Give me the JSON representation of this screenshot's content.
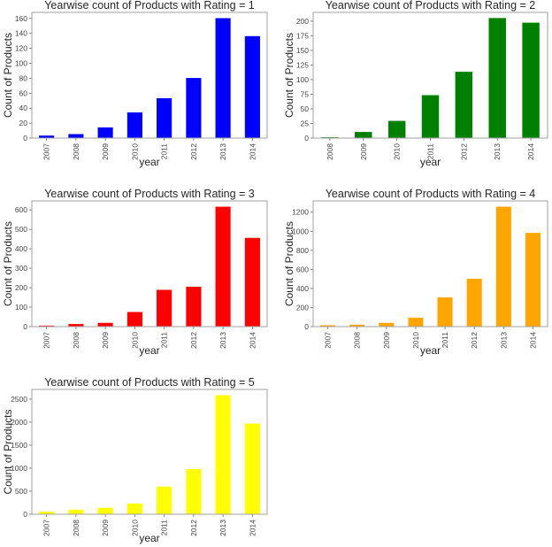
{
  "chart_data": [
    {
      "type": "bar",
      "title": "Yearwise count of Products with Rating = 1",
      "xlabel": "year",
      "ylabel": "Count of Products",
      "categories": [
        "2007",
        "2008",
        "2009",
        "2010",
        "2011",
        "2012",
        "2013",
        "2014"
      ],
      "values": [
        3,
        5,
        14,
        34,
        53,
        80,
        160,
        136
      ],
      "color": "#0000ff",
      "ylim": [
        0,
        168
      ],
      "yticks": [
        0,
        20,
        40,
        60,
        80,
        100,
        120,
        140,
        160
      ],
      "grid": false
    },
    {
      "type": "bar",
      "title": "Yearwise count of Products with Rating = 2",
      "xlabel": "year",
      "ylabel": "Count of Products",
      "categories": [
        "2008",
        "2009",
        "2010",
        "2011",
        "2012",
        "2013",
        "2014"
      ],
      "values": [
        1,
        10,
        29,
        73,
        113,
        205,
        197
      ],
      "color": "#008000",
      "ylim": [
        0,
        215
      ],
      "yticks": [
        0,
        25,
        50,
        75,
        100,
        125,
        150,
        175,
        200
      ],
      "grid": false
    },
    {
      "type": "bar",
      "title": "Yearwise count of Products with Rating = 3",
      "xlabel": "year",
      "ylabel": "Count of Products",
      "categories": [
        "2007",
        "2008",
        "2009",
        "2010",
        "2011",
        "2012",
        "2013",
        "2014"
      ],
      "values": [
        4,
        12,
        18,
        74,
        188,
        204,
        615,
        455
      ],
      "color": "#ff0000",
      "ylim": [
        0,
        646
      ],
      "yticks": [
        0,
        100,
        200,
        300,
        400,
        500,
        600
      ],
      "grid": false
    },
    {
      "type": "bar",
      "title": "Yearwise count of Products with Rating = 4",
      "xlabel": "year",
      "ylabel": "Count of Products",
      "categories": [
        "2007",
        "2008",
        "2009",
        "2010",
        "2011",
        "2012",
        "2013",
        "2014"
      ],
      "values": [
        12,
        18,
        37,
        92,
        305,
        500,
        1255,
        980
      ],
      "color": "#ffa500",
      "ylim": [
        0,
        1318
      ],
      "yticks": [
        0,
        200,
        400,
        600,
        800,
        1000,
        1200
      ],
      "grid": false
    },
    {
      "type": "bar",
      "title": "Yearwise count of Products with Rating = 5",
      "xlabel": "year",
      "ylabel": "Count of Products",
      "categories": [
        "2007",
        "2008",
        "2009",
        "2010",
        "2011",
        "2012",
        "2013",
        "2014"
      ],
      "values": [
        50,
        95,
        135,
        230,
        595,
        975,
        2580,
        1965
      ],
      "color": "#ffff00",
      "ylim": [
        0,
        2710
      ],
      "yticks": [
        0,
        500,
        1000,
        1500,
        2000,
        2500
      ],
      "grid": false
    }
  ]
}
